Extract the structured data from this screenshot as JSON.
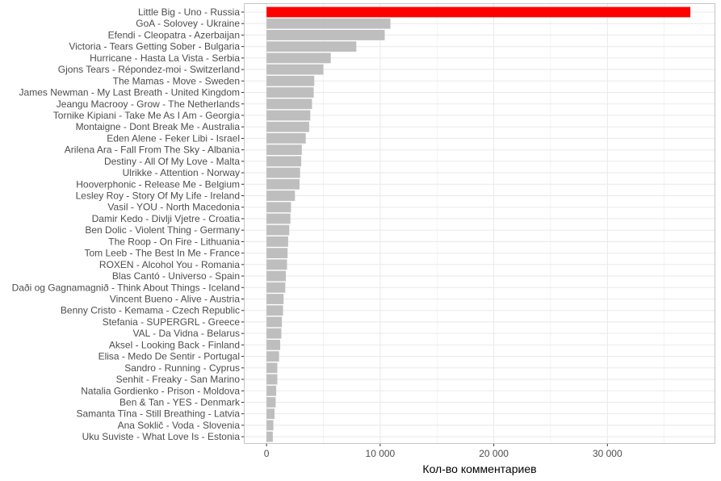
{
  "chart_data": {
    "type": "bar",
    "orientation": "horizontal",
    "xlabel": "Кол-во комментариев",
    "ylabel": "",
    "xlim": [
      -2000,
      39500
    ],
    "xticks": [
      0,
      10000,
      20000,
      30000
    ],
    "xtick_labels": [
      "0",
      "10 000",
      "20 000",
      "30 000"
    ],
    "grid": true,
    "legend": "none",
    "colors": {
      "highlight": "#ff0000",
      "bar": "#bebebe",
      "grid": "#ebebeb",
      "axis_text": "#4d4d4d"
    },
    "categories": [
      "Little Big - Uno - Russia",
      "GoA - Solovey - Ukraine",
      "Efendi - Cleopatra - Azerbaijan",
      "Victoria - Tears Getting Sober - Bulgaria",
      "Hurricane - Hasta La Vista - Serbia",
      "Gjons Tears - Répondez-moi - Switzerland",
      "The Mamas - Move - Sweden",
      "James Newman - My Last Breath - United Kingdom",
      "Jeangu Macrooy - Grow - The Netherlands",
      "Tornike Kipiani - Take Me As I Am - Georgia",
      "Montaigne - Dont Break Me - Australia",
      "Eden Alene - Feker Libi - Israel",
      "Arilena Ara - Fall From The Sky - Albania",
      "Destiny - All Of My Love - Malta",
      "Ulrikke - Attention - Norway",
      "Hooverphonic - Release Me - Belgium",
      "Lesley Roy - Story Of My Life - Ireland",
      "Vasil - YOU - North Macedonia",
      "Damir Kedo - Divlji Vjetre - Croatia",
      "Ben Dolic - Violent Thing - Germany",
      "The Roop - On Fire - Lithuania",
      "Tom Leeb - The Best In Me - France",
      "ROXEN - Alcohol You - Romania",
      "Blas Cantó - Universo - Spain",
      "Daði og Gagnamagnið - Think About Things - Iceland",
      "Vincent Bueno - Alive - Austria",
      "Benny Cristo - Kemama - Czech Republic",
      "Stefania - SUPERGRL - Greece",
      "VAL - Da Vidna - Belarus",
      "Aksel - Looking Back - Finland",
      "Elisa - Medo De Sentir - Portugal",
      "Sandro - Running - Cyprus",
      "Senhit - Freaky - San Marino",
      "Natalia Gordienko - Prison - Moldova",
      "Ben & Tan - YES - Denmark",
      "Samanta Tīna - Still Breathing - Latvia",
      "Ana Soklič - Voda - Slovenia",
      "Uku Suviste - What Love Is - Estonia"
    ],
    "values": [
      37300,
      10900,
      10400,
      7900,
      5650,
      5000,
      4200,
      4150,
      4000,
      3850,
      3750,
      3450,
      3100,
      3050,
      2950,
      2900,
      2500,
      2150,
      2100,
      2000,
      1900,
      1850,
      1800,
      1700,
      1650,
      1500,
      1450,
      1350,
      1300,
      1200,
      1100,
      950,
      950,
      850,
      800,
      700,
      600,
      550
    ],
    "highlight_index": 0
  }
}
